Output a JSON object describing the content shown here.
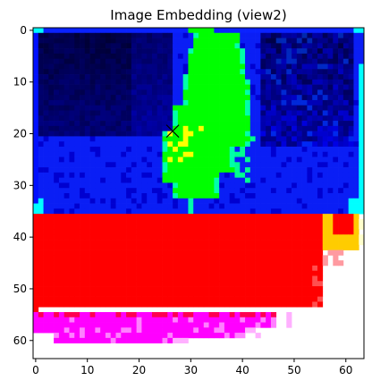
{
  "chart_data": {
    "type": "heatmap",
    "title": "Image Embedding (view2)",
    "xlabel": "",
    "ylabel": "",
    "xlim": [
      -0.5,
      63.5
    ],
    "ylim": [
      63.5,
      -0.5
    ],
    "xticks": [
      "0",
      "10",
      "20",
      "30",
      "40",
      "50",
      "60"
    ],
    "yticks": [
      "0",
      "10",
      "20",
      "30",
      "40",
      "50",
      "60"
    ],
    "grid": false,
    "marker": {
      "type": "x",
      "x": 26.5,
      "y": 19.5,
      "color": "#000000"
    },
    "regions": [
      {
        "name": "blue background",
        "color": "#0a1ef5",
        "rows": [
          1,
          35
        ],
        "cols": [
          0,
          63
        ]
      },
      {
        "name": "dark upper area",
        "color": "#02021e",
        "rows": [
          1,
          17
        ],
        "cols": [
          0,
          27
        ]
      },
      {
        "name": "green object",
        "color": "#00ff00",
        "rows": [
          0,
          33
        ],
        "cols": [
          22,
          45
        ]
      },
      {
        "name": "yellow patch",
        "color": "#ffff00",
        "rows": [
          19,
          26
        ],
        "cols": [
          23,
          30
        ]
      },
      {
        "name": "red lower area",
        "color": "#ff0000",
        "rows": [
          36,
          55
        ],
        "cols": [
          0,
          55
        ]
      },
      {
        "name": "magenta strip",
        "color": "#ff00ff",
        "rows": [
          55,
          60
        ],
        "cols": [
          0,
          42
        ]
      },
      {
        "name": "yellow corner",
        "color": "#ffcc00",
        "rows": [
          36,
          41
        ],
        "cols": [
          55,
          63
        ]
      }
    ]
  }
}
